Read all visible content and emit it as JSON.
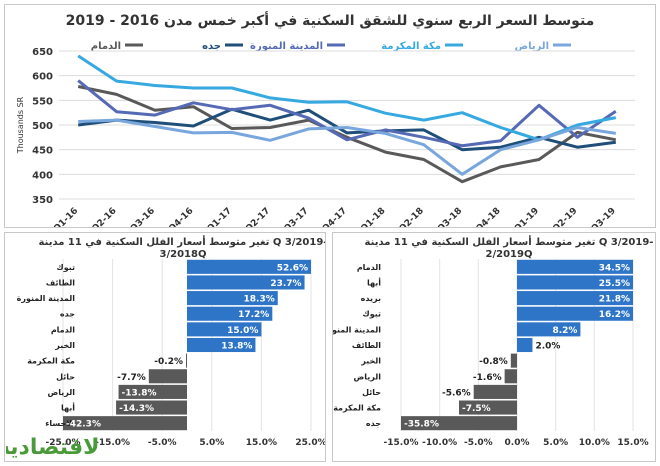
{
  "chart_data": [
    {
      "type": "line",
      "title": "متوسط السعر الربع سنوي للشقق السكنية في أكبر خمس مدن 2016 - 2019",
      "ylabel": "Thousands SR",
      "ylim": [
        350,
        650
      ],
      "yticks": [
        350,
        400,
        450,
        500,
        550,
        600,
        650
      ],
      "x": [
        "Q1-16",
        "Q2-16",
        "Q3-16",
        "Q4-16",
        "Q1-17",
        "Q2-17",
        "Q3-17",
        "Q4-17",
        "Q1-18",
        "Q2-18",
        "Q3-18",
        "Q4-18",
        "Q1-19",
        "Q2-19",
        "Q3-19"
      ],
      "grid": true,
      "legend": "top",
      "series": [
        {
          "name": "الرياض",
          "color": "#79a6dc",
          "values": [
            507,
            510,
            497,
            484,
            485,
            469,
            492,
            495,
            483,
            460,
            400,
            450,
            470,
            495,
            483
          ]
        },
        {
          "name": "مكة المكرمة",
          "color": "#36a9e0",
          "values": [
            640,
            589,
            580,
            575,
            575,
            555,
            546,
            547,
            524,
            510,
            525,
            495,
            470,
            500,
            515
          ]
        },
        {
          "name": "المدينة المنورة",
          "color": "#5569b5",
          "values": [
            590,
            527,
            520,
            545,
            531,
            540,
            514,
            470,
            490,
            475,
            458,
            468,
            540,
            475,
            528
          ]
        },
        {
          "name": "جده",
          "color": "#1f4e79",
          "values": [
            500,
            510,
            505,
            498,
            532,
            510,
            530,
            484,
            488,
            490,
            450,
            455,
            475,
            455,
            465
          ]
        },
        {
          "name": "الدمام",
          "color": "#595959",
          "values": [
            578,
            562,
            530,
            537,
            493,
            495,
            510,
            475,
            445,
            430,
            385,
            415,
            430,
            485,
            470
          ]
        }
      ]
    },
    {
      "type": "bar",
      "orientation": "horizontal",
      "title": "تغير متوسط أسعار الفلل السكنية في 11 مدينة Q 3/2019- 3/2018Q",
      "categories": [
        "تبوك",
        "الطائف",
        "المدينة المنورة",
        "جده",
        "الدمام",
        "الخبر",
        "مكة المكرمة",
        "حائل",
        "الرياض",
        "أبها",
        "الاحساء"
      ],
      "values": [
        52.6,
        23.7,
        18.3,
        17.2,
        15.0,
        13.8,
        -0.2,
        -7.7,
        -13.8,
        -14.3,
        -42.3
      ],
      "value_labels": [
        "52.6%",
        "23.7%",
        "18.3%",
        "17.2%",
        "15.0%",
        "13.8%",
        "-0.2%",
        "-7.7%",
        "-13.8%",
        "-14.3%",
        "-42.3%"
      ],
      "xlim": [
        -25,
        25
      ],
      "xticks": [
        "-25.0%",
        "-15.0%",
        "-5.0%",
        "5.0%",
        "15.0%",
        "25.0%"
      ],
      "xtick_values": [
        -25,
        -15,
        -5,
        5,
        15,
        25
      ],
      "positive_color": "#2e75c8",
      "negative_color": "#595959"
    },
    {
      "type": "bar",
      "orientation": "horizontal",
      "title": "تغير متوسط أسعار الفلل السكنية في 11 مدينة Q 3/2019- 2/2019Q",
      "categories": [
        "الدمام",
        "أبها",
        "بريده",
        "تبوك",
        "المدينة المنورة",
        "الطائف",
        "الخبر",
        "الرياض",
        "حائل",
        "مكة المكرمة",
        "جده"
      ],
      "values": [
        34.5,
        25.5,
        21.8,
        16.2,
        8.2,
        2.0,
        -0.8,
        -1.6,
        -5.6,
        -7.5,
        -35.8
      ],
      "value_labels": [
        "34.5%",
        "25.5%",
        "21.8%",
        "16.2%",
        "8.2%",
        "2.0%",
        "-0.8%",
        "-1.6%",
        "-5.6%",
        "-7.5%",
        "-35.8%"
      ],
      "xlim": [
        -15,
        15
      ],
      "xticks": [
        "-15.0%",
        "-10.0%",
        "-5.0%",
        "0.0%",
        "5.0%",
        "10.0%",
        "15.0%"
      ],
      "xtick_values": [
        -15,
        -10,
        -5,
        0,
        5,
        10,
        15
      ],
      "positive_color": "#2e75c8",
      "negative_color": "#595959"
    }
  ],
  "logo": {
    "text": "الاقتصادية",
    "color": "#4a9a3a"
  }
}
